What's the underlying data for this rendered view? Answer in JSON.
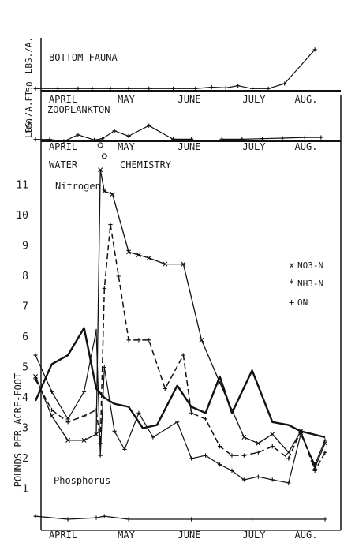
{
  "chart_data": [
    {
      "type": "line",
      "panel": "bottom_fauna",
      "title": "BOTTOM FAUNA",
      "ylabel": "LBS./A.",
      "yticks": [
        "50"
      ],
      "ylim": [
        0,
        70
      ],
      "xticks": [
        "APRIL",
        "MAY",
        "JUNE",
        "JULY",
        "AUG."
      ],
      "series": [
        {
          "x": [
            "Mar 25",
            "Apr 5",
            "Apr 15",
            "Apr 22",
            "May 1",
            "May 10",
            "May 20",
            "Jun 1",
            "Jun 12",
            "Jun 20",
            "Jun 27",
            "Jul 3",
            "Jul 10",
            "Jul 18",
            "Jul 26",
            "Aug 10"
          ],
          "values": [
            3,
            3,
            3,
            3,
            3,
            3,
            3,
            3,
            3,
            5,
            4,
            7,
            3,
            3,
            10,
            58
          ]
        }
      ]
    },
    {
      "type": "line",
      "panel": "zooplankton",
      "title": "ZOOPLANKTON",
      "ylabel": "LBS./A.FT",
      "yticks": [
        "100"
      ],
      "ylim": [
        0,
        160
      ],
      "xticks": [
        "APRIL",
        "MAY",
        "JUNE",
        "JULY",
        "AUG."
      ],
      "series": [
        {
          "x": [
            "Mar 25",
            "Apr 1",
            "Apr 8",
            "Apr 15",
            "Apr 23",
            "Apr 27",
            "May 3",
            "May 10",
            "May 20",
            "Jun 1",
            "Jun 10"
          ],
          "values": [
            7,
            7,
            0,
            25,
            5,
            10,
            40,
            20,
            60,
            8,
            8
          ]
        },
        {
          "x": [
            "Jun 25",
            "Jul 5",
            "Jul 15",
            "Jul 25",
            "Aug 5",
            "Aug 13"
          ],
          "values": [
            8,
            8,
            10,
            12,
            15,
            15
          ]
        }
      ]
    },
    {
      "type": "line",
      "panel": "water_chemistry",
      "title": "WATER CHEMISTRY",
      "ylabel": "POUNDS PER ACRE-FOOT",
      "xticks": [
        "APRIL",
        "MAY",
        "JUNE",
        "JULY",
        "AUG."
      ],
      "yticks": [
        "1",
        "2",
        "3",
        "4",
        "5",
        "6",
        "7",
        "8",
        "9",
        "10",
        "11"
      ],
      "ylim": [
        0,
        12
      ],
      "annotations": [
        "Nitrogen",
        "Phosphorus"
      ],
      "legend": [
        "NO3-N",
        "NH3-N",
        "ON"
      ],
      "legend_position": "right",
      "series": [
        {
          "name": "NO3-N",
          "x": [
            "Mar 25",
            "Apr 2",
            "Apr 10",
            "Apr 18",
            "Apr 24",
            "Apr 26",
            "Apr 28",
            "May 2",
            "May 10",
            "May 15",
            "May 20",
            "May 28",
            "Jun 6",
            "Jun 15",
            "Jun 24",
            "Jun 30",
            "Jul 6",
            "Jul 13",
            "Jul 20",
            "Jul 28",
            "Aug 3",
            "Aug 10",
            "Aug 15"
          ],
          "values": [
            4.7,
            3.4,
            2.6,
            2.6,
            2.8,
            11.5,
            10.8,
            10.7,
            8.8,
            8.7,
            8.6,
            8.4,
            8.4,
            5.9,
            4.5,
            3.6,
            2.7,
            2.5,
            2.8,
            2.2,
            2.9,
            1.7,
            2.5
          ]
        },
        {
          "name": "NH3-N",
          "x": [
            "Mar 25",
            "Apr 2",
            "Apr 10",
            "Apr 18",
            "Apr 24",
            "Apr 26",
            "Apr 28",
            "May 1",
            "May 5",
            "May 10",
            "May 15",
            "May 20",
            "May 28",
            "Jun 6",
            "Jun 10",
            "Jun 17",
            "Jun 24",
            "Jun 30",
            "Jul 6",
            "Jul 13",
            "Jul 20",
            "Jul 28",
            "Aug 3",
            "Aug 10",
            "Aug 15"
          ],
          "values": [
            4.6,
            3.6,
            3.2,
            3.4,
            3.6,
            2.5,
            7.6,
            9.7,
            8.0,
            5.9,
            5.9,
            5.9,
            4.3,
            5.4,
            3.5,
            3.3,
            2.4,
            2.1,
            2.1,
            2.2,
            2.4,
            2.0,
            2.9,
            1.6,
            2.2
          ]
        },
        {
          "name": "ON",
          "x": [
            "Mar 25",
            "Apr 2",
            "Apr 10",
            "Apr 18",
            "Apr 24",
            "Apr 26",
            "Apr 28",
            "May 3",
            "May 8",
            "May 15",
            "May 22",
            "Jun 3",
            "Jun 10",
            "Jun 17",
            "Jun 24",
            "Jun 30",
            "Jul 6",
            "Jul 13",
            "Jul 20",
            "Jul 28",
            "Aug 3",
            "Aug 10",
            "Aug 15"
          ],
          "values": [
            5.4,
            4.2,
            3.3,
            4.2,
            6.2,
            2.1,
            5.0,
            2.9,
            2.3,
            3.5,
            2.7,
            3.2,
            2.0,
            2.1,
            1.8,
            1.6,
            1.3,
            1.4,
            1.3,
            1.2,
            2.8,
            1.8,
            2.6
          ]
        },
        {
          "name": "Phosphorus",
          "x": [
            "Mar 25",
            "Apr 2",
            "Apr 10",
            "Apr 18",
            "Apr 24",
            "Apr 28",
            "May 3",
            "May 10",
            "May 17",
            "May 24",
            "Jun 3",
            "Jun 10",
            "Jun 17",
            "Jun 24",
            "Jun 30",
            "Jul 10",
            "Jul 20",
            "Jul 28",
            "Aug 3",
            "Aug 15"
          ],
          "values": [
            3.9,
            5.1,
            5.4,
            6.3,
            4.3,
            4.0,
            3.8,
            3.7,
            3.0,
            3.1,
            4.4,
            3.7,
            3.5,
            4.7,
            3.5,
            4.9,
            3.2,
            3.1,
            2.9,
            2.7
          ]
        },
        {
          "name": "Phosphorus (lower)",
          "x": [
            "Mar 25",
            "Apr 10",
            "Apr 24",
            "Apr 28",
            "May 10",
            "Jun 10",
            "Jul 10",
            "Aug 15"
          ],
          "values": [
            0.1,
            0.0,
            0.05,
            0.1,
            0.0,
            0.0,
            0.0,
            0.0
          ]
        }
      ]
    }
  ]
}
